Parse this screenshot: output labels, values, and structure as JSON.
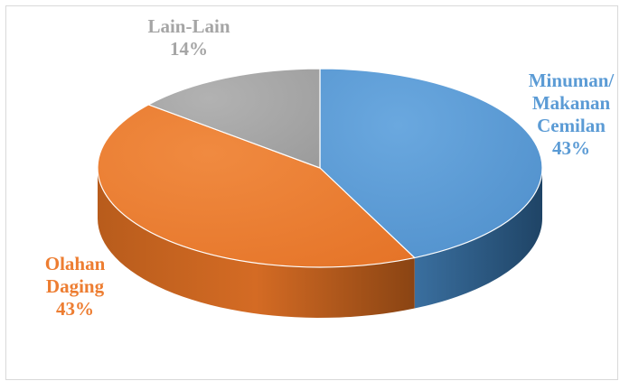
{
  "chart_data": {
    "type": "pie",
    "style": "3d",
    "legend": "none",
    "slices": [
      {
        "name": "Minuman/ Makanan Cemilan",
        "value": 43,
        "label_lines": [
          "Minuman/",
          "Makanan",
          "Cemilan",
          "43%"
        ],
        "color": "#5b9bd5",
        "side_color": "#2f5f8c",
        "label_color": "#5b9bd5"
      },
      {
        "name": "Olahan Daging",
        "value": 43,
        "label_lines": [
          "Olahan",
          "Daging",
          "43%"
        ],
        "color": "#ed7d31",
        "side_color": "#a8531a",
        "label_color": "#ed7d31"
      },
      {
        "name": "Lain-Lain",
        "value": 14,
        "label_lines": [
          "Lain-Lain",
          "14%"
        ],
        "color": "#a5a5a5",
        "side_color": "#6e6e6e",
        "label_color": "#a5a5a5"
      }
    ]
  }
}
